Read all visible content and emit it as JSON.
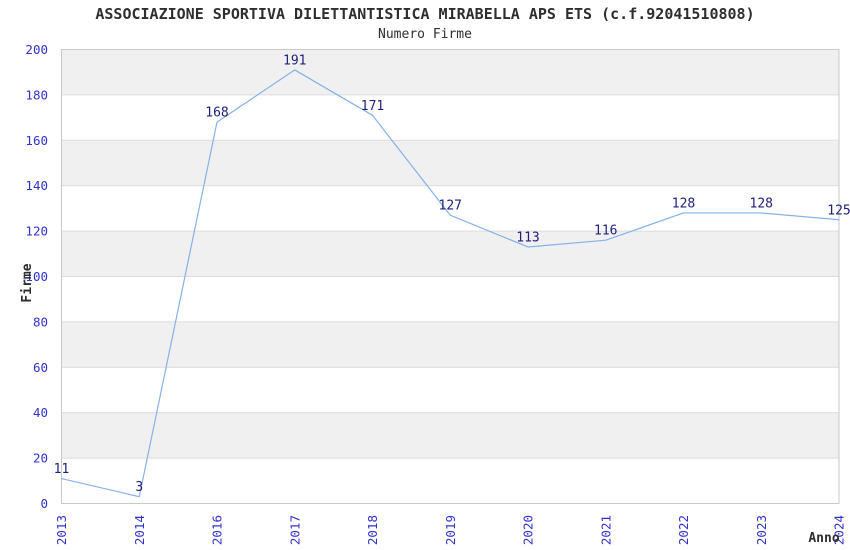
{
  "chart_data": {
    "type": "line",
    "title": "ASSOCIAZIONE SPORTIVA DILETTANTISTICA MIRABELLA APS ETS (c.f.92041510808)",
    "subtitle": "Numero Firme",
    "xlabel": "Anno",
    "ylabel": "Firme",
    "categories": [
      "2013",
      "2014",
      "2016",
      "2017",
      "2018",
      "2019",
      "2020",
      "2021",
      "2022",
      "2023",
      "2024"
    ],
    "values": [
      11,
      3,
      168,
      191,
      171,
      127,
      113,
      116,
      128,
      128,
      125
    ],
    "ylim": [
      0,
      200
    ],
    "ytick_step": 20,
    "yticks": [
      0,
      20,
      40,
      60,
      80,
      100,
      120,
      140,
      160,
      180,
      200
    ],
    "grid": true,
    "legend": "none",
    "colors": {
      "line": "#84b2e8",
      "tick_label": "#3232cd",
      "data_label": "#1f1f78",
      "band": "#f0f0f0",
      "gridline": "#dcdcdc",
      "border": "#c9c9c9",
      "title": "#2e2e2e",
      "background": "#ffffff"
    }
  }
}
